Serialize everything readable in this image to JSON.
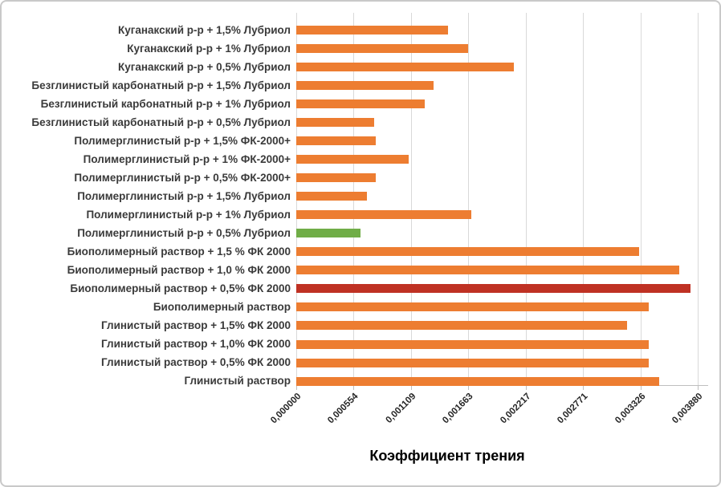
{
  "chart_data": {
    "type": "bar",
    "orientation": "horizontal",
    "title": "",
    "xlabel": "Коэффициент трения",
    "ylabel": "",
    "xlim": [
      0,
      0.00388
    ],
    "x_tick_labels": [
      "0,000000",
      "0,000554",
      "0,001109",
      "0,001663",
      "0,002217",
      "0,002771",
      "0,003326",
      "0,003880"
    ],
    "x_tick_values": [
      0,
      0.000554,
      0.001109,
      0.001663,
      0.002217,
      0.002771,
      0.003326,
      0.00388
    ],
    "grid": "vertical-gridlines-on",
    "legend": "none",
    "palette": {
      "orange": "#ED7D31",
      "green": "#70AD47",
      "dark_red": "#BF3123"
    },
    "categories": [
      "Куганакский р-р + 1,5% Лубриол",
      "Куганакский р-р + 1% Лубриол",
      "Куганакский р-р + 0,5% Лубриол",
      "Безглинистый карбонатный р-р + 1,5% Лубриол",
      "Безглинистый карбонатный р-р + 1% Лубриол",
      "Безглинистый карбонатный р-р + 0,5% Лубриол",
      "Полимерглинистый р-р + 1,5% ФК-2000+",
      "Полимерглинистый р-р + 1% ФК-2000+",
      "Полимерглинистый р-р + 0,5% ФК-2000+",
      "Полимерглинистый р-р + 1,5% Лубриол",
      "Полимерглинистый р-р + 1% Лубриол",
      "Полимерглинистый р-р + 0,5% Лубриол",
      "Биополимерный раствор + 1,5 % ФК 2000",
      "Биополимерный раствор + 1,0 % ФК 2000",
      "Биополимерный раствор + 0,5% ФК 2000",
      "Биополимерный раствор",
      "Глинистый раствор + 1,5% ФК 2000",
      "Глинистый раствор + 1,0% ФК 2000",
      "Глинистый раствор + 0,5% ФК 2000",
      "Глинистый раствор"
    ],
    "values": [
      0.00147,
      0.00166,
      0.0021,
      0.00133,
      0.00124,
      0.00075,
      0.00077,
      0.00109,
      0.00077,
      0.00068,
      0.00169,
      0.00062,
      0.00331,
      0.0037,
      0.00381,
      0.00341,
      0.0032,
      0.00341,
      0.00341,
      0.00351
    ],
    "bar_colors": [
      "orange",
      "orange",
      "orange",
      "orange",
      "orange",
      "orange",
      "orange",
      "orange",
      "orange",
      "orange",
      "orange",
      "green",
      "orange",
      "orange",
      "dark_red",
      "orange",
      "orange",
      "orange",
      "orange",
      "orange"
    ]
  }
}
